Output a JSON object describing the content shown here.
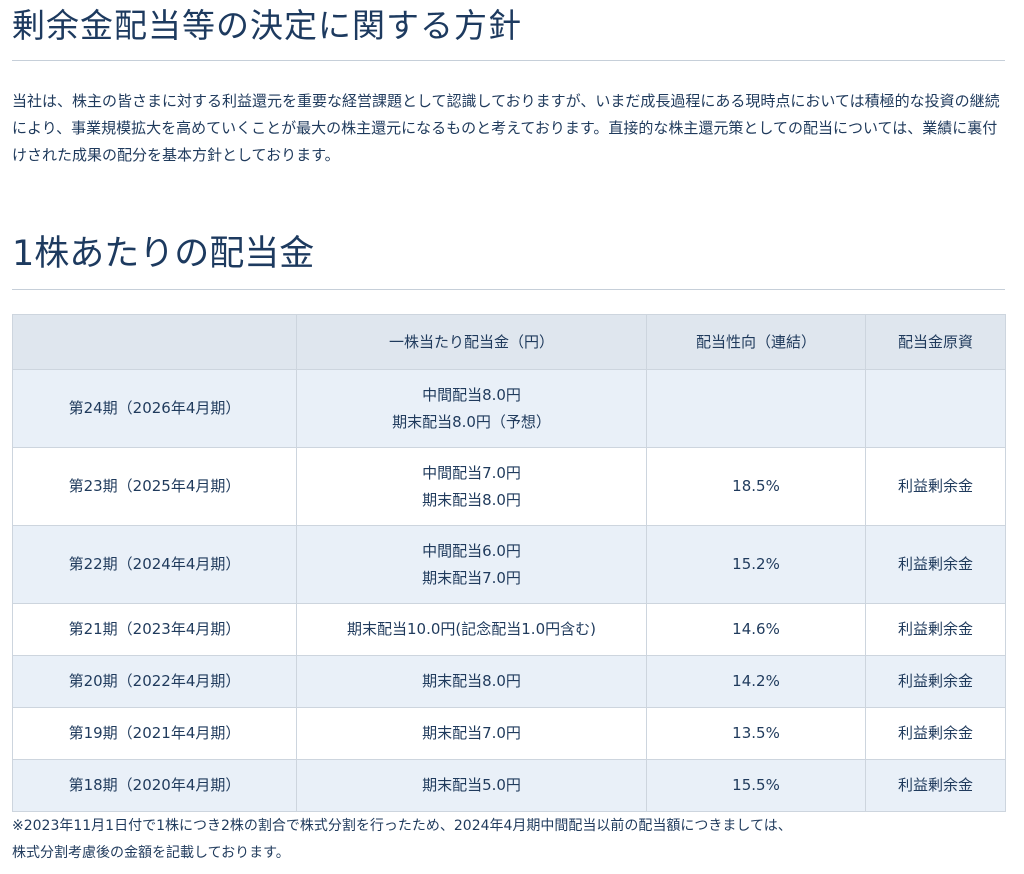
{
  "section1": {
    "title": "剰余金配当等の決定に関する方針",
    "paragraph": "当社は、株主の皆さまに対する利益還元を重要な経営課題として認識しておりますが、いまだ成長過程にある現時点においては積極的な投資の継続により、事業規模拡大を高めていくことが最大の株主還元になるものと考えております。直接的な株主還元策としての配当については、業績に裏付けされた成果の配分を基本方針としております。"
  },
  "section2": {
    "title": "1株あたりの配当金",
    "table": {
      "headers": [
        "",
        "一株当たり配当金（円）",
        "配当性向（連結）",
        "配当金原資"
      ],
      "rows": [
        {
          "period": "第24期（2026年4月期）",
          "dividend": [
            "中間配当8.0円",
            "期末配当8.0円（予想）"
          ],
          "payout": "",
          "source": ""
        },
        {
          "period": "第23期（2025年4月期）",
          "dividend": [
            "中間配当7.0円",
            "期末配当8.0円"
          ],
          "payout": "18.5%",
          "source": "利益剰余金"
        },
        {
          "period": "第22期（2024年4月期）",
          "dividend": [
            "中間配当6.0円",
            "期末配当7.0円"
          ],
          "payout": "15.2%",
          "source": "利益剰余金"
        },
        {
          "period": "第21期（2023年4月期）",
          "dividend": [
            "期末配当10.0円(記念配当1.0円含む)"
          ],
          "payout": "14.6%",
          "source": "利益剰余金"
        },
        {
          "period": "第20期（2022年4月期）",
          "dividend": [
            "期末配当8.0円"
          ],
          "payout": "14.2%",
          "source": "利益剰余金"
        },
        {
          "period": "第19期（2021年4月期）",
          "dividend": [
            "期末配当7.0円"
          ],
          "payout": "13.5%",
          "source": "利益剰余金"
        },
        {
          "period": "第18期（2020年4月期）",
          "dividend": [
            "期末配当5.0円"
          ],
          "payout": "15.5%",
          "source": "利益剰余金"
        }
      ]
    },
    "note_line1": "※2023年11月1日付で1株につき2株の割合で株式分割を行ったため、2024年4月期中間配当以前の配当額につきましては、",
    "note_line2": "株式分割考慮後の金額を記載しております。"
  },
  "colors": {
    "text": "#1f3a5c",
    "header_bg": "#dfe6ee",
    "row_stripe": "#e9f0f8",
    "border": "#cdd5de"
  }
}
